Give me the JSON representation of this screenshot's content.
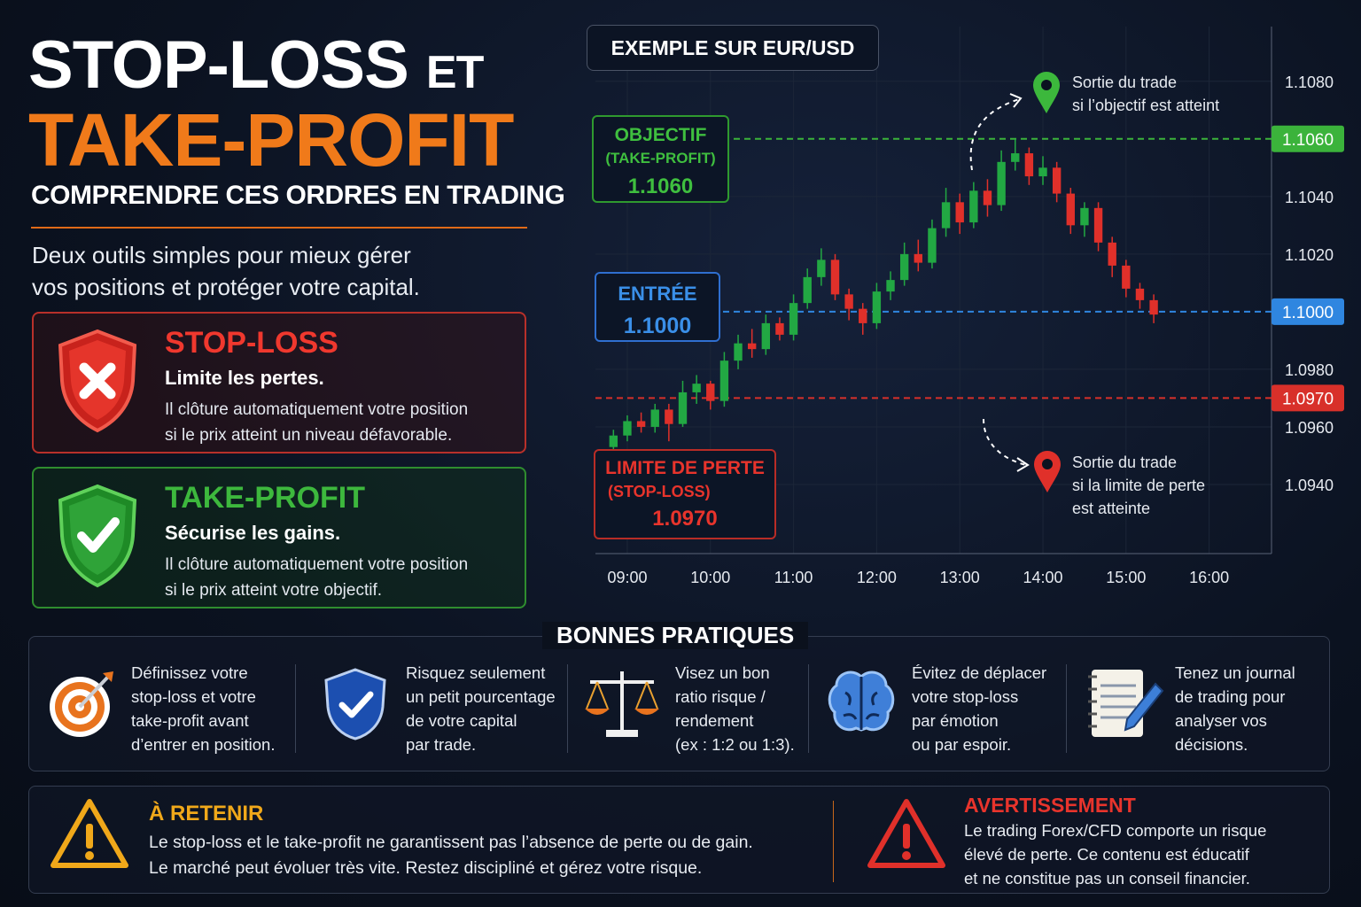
{
  "header": {
    "title_line1": "STOP-LOSS",
    "title_et": "ET",
    "title_line2": "TAKE-PROFIT",
    "subtitle": "COMPRENDRE CES ORDRES EN TRADING",
    "intro": [
      "Deux outils simples pour mieux gérer",
      "vos positions et protéger votre capital."
    ]
  },
  "cards": [
    {
      "title": "STOP-LOSS",
      "tagline": "Limite les pertes.",
      "text": [
        "Il clôture automatiquement votre position",
        "si le prix atteint un niveau défavorable."
      ]
    },
    {
      "title": "TAKE-PROFIT",
      "tagline": "Sécurise les gains.",
      "text": [
        "Il clôture automatiquement votre position",
        "si le prix atteint votre objectif."
      ]
    }
  ],
  "chart_data": {
    "type": "candlestick",
    "title": "EXEMPLE SUR EUR/USD",
    "up_color": "#22a843",
    "down_color": "#e0302a",
    "x": [
      530,
      540,
      550,
      560,
      570,
      580,
      590,
      600,
      610,
      620,
      630,
      640,
      650,
      660,
      670,
      680,
      690,
      700,
      710,
      720,
      730,
      740,
      750,
      760,
      770,
      780,
      790,
      800,
      810,
      820,
      830,
      840,
      850,
      860,
      870,
      880,
      890,
      900,
      910,
      920
    ],
    "open": [
      1.0953,
      1.0957,
      1.0962,
      1.096,
      1.0966,
      1.0961,
      1.0972,
      1.0975,
      1.0969,
      1.0983,
      1.0989,
      1.0987,
      1.0996,
      1.0992,
      1.1003,
      1.1012,
      1.1018,
      1.1006,
      1.1001,
      1.0996,
      1.1007,
      1.1011,
      1.102,
      1.1017,
      1.1029,
      1.1038,
      1.1031,
      1.1042,
      1.1037,
      1.1052,
      1.1055,
      1.1047,
      1.105,
      1.1041,
      1.103,
      1.1036,
      1.1024,
      1.1016,
      1.1008,
      1.1004
    ],
    "high": [
      1.0959,
      1.0964,
      1.0965,
      1.0968,
      1.0968,
      1.0976,
      1.0978,
      1.0976,
      1.0986,
      1.0992,
      1.0994,
      1.0999,
      1.0998,
      1.1006,
      1.1015,
      1.1022,
      1.102,
      1.1008,
      1.1003,
      1.101,
      1.1014,
      1.1024,
      1.1025,
      1.1032,
      1.1043,
      1.1041,
      1.1045,
      1.1046,
      1.1056,
      1.106,
      1.1057,
      1.1054,
      1.1052,
      1.1043,
      1.1038,
      1.1038,
      1.1026,
      1.1018,
      1.101,
      1.1006
    ],
    "low": [
      1.095,
      1.0955,
      1.0958,
      1.0958,
      1.0955,
      1.096,
      1.0968,
      1.0966,
      1.0967,
      1.098,
      1.0984,
      1.0985,
      1.099,
      1.099,
      1.1001,
      1.1009,
      1.1004,
      1.0997,
      1.0992,
      1.0994,
      1.1004,
      1.1009,
      1.1014,
      1.1015,
      1.1026,
      1.1027,
      1.1029,
      1.1033,
      1.1035,
      1.1049,
      1.1044,
      1.1044,
      1.1038,
      1.1027,
      1.1026,
      1.1021,
      1.1012,
      1.1005,
      1.1001,
      1.0996
    ],
    "close": [
      1.0957,
      1.0962,
      1.096,
      1.0966,
      1.0961,
      1.0972,
      1.0975,
      1.0969,
      1.0983,
      1.0989,
      1.0987,
      1.0996,
      1.0992,
      1.1003,
      1.1012,
      1.1018,
      1.1006,
      1.1001,
      1.0996,
      1.1007,
      1.1011,
      1.102,
      1.1017,
      1.1029,
      1.1038,
      1.1031,
      1.1042,
      1.1037,
      1.1052,
      1.1055,
      1.1047,
      1.105,
      1.1041,
      1.103,
      1.1036,
      1.1024,
      1.1016,
      1.1008,
      1.1004,
      1.0999
    ],
    "xlim": [
      517,
      1005
    ],
    "xticks": [
      {
        "value": 540,
        "label": "09:00"
      },
      {
        "value": 600,
        "label": "10:00"
      },
      {
        "value": 660,
        "label": "11:00"
      },
      {
        "value": 720,
        "label": "12:00"
      },
      {
        "value": 780,
        "label": "13:00"
      },
      {
        "value": 840,
        "label": "14:00"
      },
      {
        "value": 900,
        "label": "15:00"
      },
      {
        "value": 960,
        "label": "16:00"
      }
    ],
    "ylim": [
      1.0916,
      1.1099
    ],
    "yticks": [
      {
        "value": 1.108,
        "label": "1.1080"
      },
      {
        "value": 1.104,
        "label": "1.1040"
      },
      {
        "value": 1.102,
        "label": "1.1020"
      },
      {
        "value": 1.098,
        "label": "1.0980"
      },
      {
        "value": 1.096,
        "label": "1.0960"
      },
      {
        "value": 1.094,
        "label": "1.0940"
      }
    ],
    "grid": true,
    "levels": [
      {
        "value": 1.106,
        "label": "1.1060",
        "color": "#3bb33b"
      },
      {
        "value": 1.1,
        "label": "1.1000",
        "color": "#2f86e0"
      },
      {
        "value": 1.097,
        "label": "1.0970",
        "color": "#d8302a"
      }
    ],
    "callouts": [
      {
        "title": "OBJECTIF",
        "subtitle": "(TAKE-PROFIT)"
      },
      {
        "title": "ENTRÉE"
      },
      {
        "title": "LIMITE DE PERTE",
        "subtitle": "(STOP-LOSS)"
      }
    ],
    "exits": [
      {
        "lines": [
          "Sortie du trade",
          "si l’objectif est atteint"
        ]
      },
      {
        "lines": [
          "Sortie du trade",
          "si la limite de perte",
          "est atteinte"
        ]
      }
    ]
  },
  "practices": {
    "title": "BONNES PRATIQUES",
    "items": [
      [
        "Définissez votre",
        "stop-loss et votre",
        "take-profit avant",
        "d’entrer en position."
      ],
      [
        "Risquez seulement",
        "un petit pourcentage",
        "de votre capital",
        "par trade."
      ],
      [
        "Visez un bon",
        "ratio risque /",
        "rendement",
        "(ex : 1:2 ou 1:3)."
      ],
      [
        "Évitez de déplacer",
        "votre stop-loss",
        "par émotion",
        "ou par espoir."
      ],
      [
        "Tenez un journal",
        "de trading pour",
        "analyser vos",
        "décisions."
      ]
    ]
  },
  "notes": [
    {
      "title": "À RETENIR",
      "text": [
        "Le stop-loss et le take-profit ne garantissent pas l’absence de perte ou de gain.",
        "Le marché peut évoluer très vite. Restez discipliné et gérez votre risque."
      ]
    },
    {
      "title": "AVERTISSEMENT",
      "text": [
        "Le trading Forex/CFD comporte un risque",
        "élevé de perte. Ce contenu est éducatif",
        "et ne constitue pas un conseil financier."
      ]
    }
  ]
}
